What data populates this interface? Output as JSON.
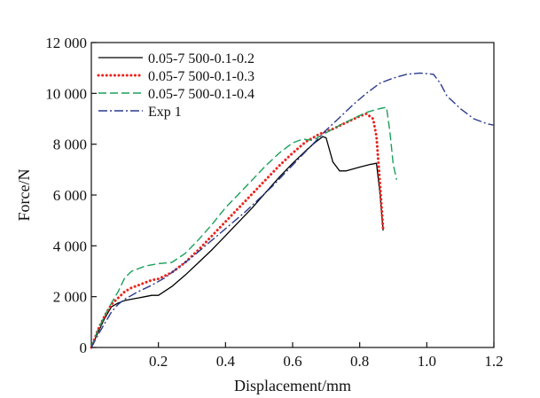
{
  "chart_data": {
    "type": "line",
    "xlabel": "Displacement/mm",
    "ylabel": "Force/N",
    "xlim": [
      0,
      1.2
    ],
    "ylim": [
      0,
      12000
    ],
    "x_ticks": [
      0.2,
      0.4,
      0.6,
      0.8,
      1.0,
      1.2
    ],
    "x_tick_labels": [
      "0.2",
      "0.4",
      "0.6",
      "0.8",
      "1.0",
      "1.2"
    ],
    "y_ticks": [
      0,
      2000,
      4000,
      6000,
      8000,
      10000,
      12000
    ],
    "y_tick_labels": [
      "0",
      "2 000",
      "4 000",
      "6 000",
      "8 000",
      "10 000",
      "12 000"
    ],
    "grid": false,
    "legend_position": "top-left",
    "series": [
      {
        "name": "0.05-7 500-0.1-0.2",
        "color": "#000000",
        "dash": "solid",
        "x": [
          0,
          0.02,
          0.04,
          0.06,
          0.08,
          0.1,
          0.12,
          0.14,
          0.16,
          0.18,
          0.2,
          0.24,
          0.28,
          0.32,
          0.36,
          0.4,
          0.44,
          0.48,
          0.52,
          0.56,
          0.6,
          0.64,
          0.67,
          0.69,
          0.7,
          0.72,
          0.74,
          0.76,
          0.8,
          0.83,
          0.85,
          0.86,
          0.87
        ],
        "y": [
          0,
          600,
          1150,
          1600,
          1750,
          1850,
          1900,
          1950,
          2000,
          2050,
          2050,
          2400,
          2850,
          3350,
          3850,
          4400,
          4950,
          5500,
          6100,
          6700,
          7250,
          7750,
          8100,
          8300,
          8250,
          7300,
          6950,
          6950,
          7100,
          7200,
          7250,
          6100,
          4600
        ]
      },
      {
        "name": "0.05-7 500-0.1-0.3",
        "color": "#e8261f",
        "dash": "dotted",
        "x": [
          0,
          0.02,
          0.04,
          0.06,
          0.08,
          0.1,
          0.12,
          0.14,
          0.16,
          0.18,
          0.2,
          0.24,
          0.28,
          0.32,
          0.36,
          0.4,
          0.44,
          0.48,
          0.52,
          0.56,
          0.6,
          0.64,
          0.68,
          0.72,
          0.76,
          0.8,
          0.82,
          0.84,
          0.85,
          0.86,
          0.87
        ],
        "y": [
          0,
          700,
          1250,
          1700,
          1950,
          2200,
          2350,
          2450,
          2550,
          2650,
          2700,
          2950,
          3350,
          3850,
          4400,
          4950,
          5500,
          6050,
          6600,
          7150,
          7650,
          8100,
          8400,
          8600,
          8850,
          9100,
          9200,
          9000,
          8300,
          6500,
          4650
        ]
      },
      {
        "name": "0.05-7 500-0.1-0.4",
        "color": "#1aa05a",
        "dash": "dashed",
        "x": [
          0,
          0.02,
          0.04,
          0.06,
          0.08,
          0.1,
          0.12,
          0.14,
          0.16,
          0.18,
          0.2,
          0.24,
          0.28,
          0.32,
          0.36,
          0.4,
          0.44,
          0.48,
          0.52,
          0.56,
          0.6,
          0.63,
          0.66,
          0.7,
          0.74,
          0.78,
          0.82,
          0.86,
          0.88,
          0.89,
          0.9,
          0.91
        ],
        "y": [
          0,
          700,
          1250,
          1750,
          2200,
          2750,
          3000,
          3100,
          3200,
          3250,
          3300,
          3350,
          3700,
          4250,
          4850,
          5500,
          6050,
          6600,
          7150,
          7650,
          8050,
          8200,
          8150,
          8450,
          8750,
          9000,
          9250,
          9400,
          9450,
          8500,
          7200,
          6600
        ]
      },
      {
        "name": "Exp 1",
        "color": "#2c3a8c",
        "dash": "dashdot",
        "x": [
          0,
          0.02,
          0.04,
          0.06,
          0.08,
          0.1,
          0.14,
          0.18,
          0.22,
          0.26,
          0.3,
          0.34,
          0.38,
          0.42,
          0.46,
          0.5,
          0.54,
          0.58,
          0.62,
          0.66,
          0.7,
          0.74,
          0.78,
          0.82,
          0.86,
          0.9,
          0.94,
          0.98,
          1.02,
          1.04,
          1.06,
          1.1,
          1.14,
          1.18,
          1.2
        ],
        "y": [
          0,
          500,
          950,
          1400,
          1700,
          1900,
          2200,
          2450,
          2750,
          3150,
          3550,
          4000,
          4450,
          4900,
          5350,
          5850,
          6350,
          6900,
          7450,
          8000,
          8550,
          9050,
          9550,
          10000,
          10400,
          10600,
          10750,
          10800,
          10750,
          10400,
          9900,
          9400,
          9000,
          8800,
          8750
        ]
      }
    ]
  }
}
